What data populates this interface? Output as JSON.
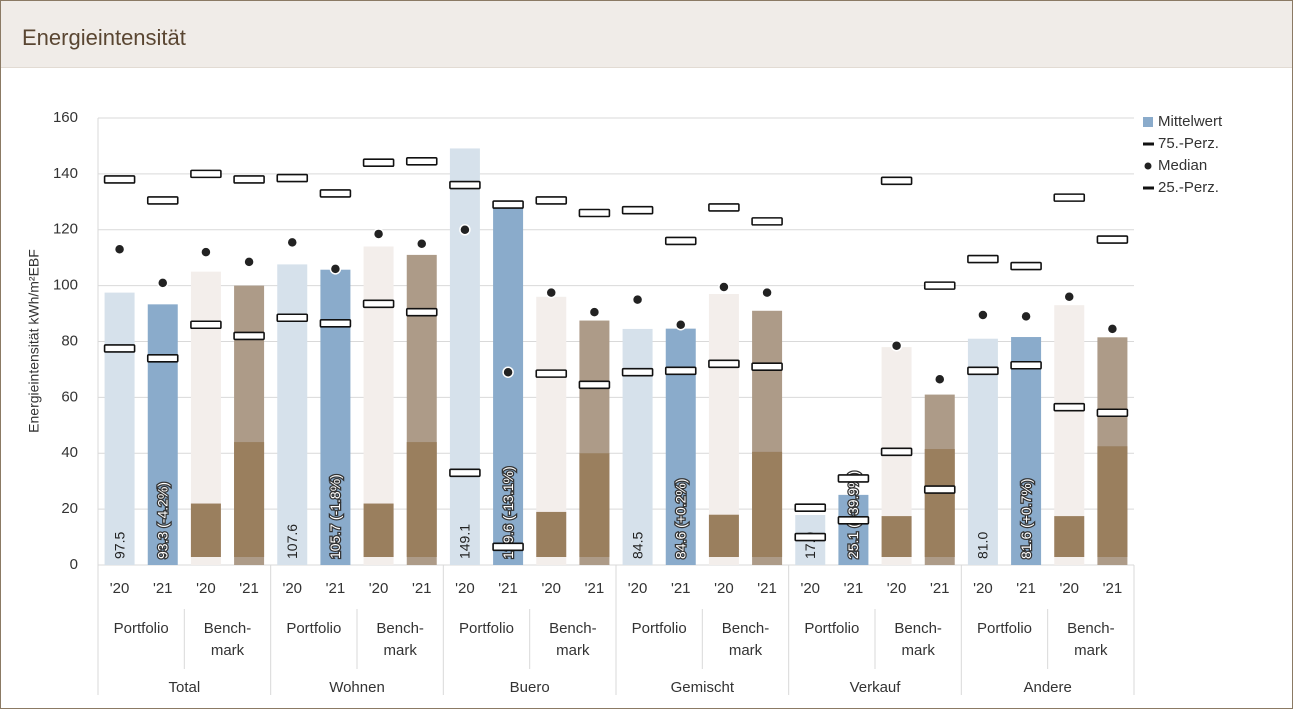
{
  "header": {
    "title": "Energieintensität"
  },
  "chart_data": {
    "type": "bar",
    "ylabel": "Energieintensität kWh/m²EBF",
    "ylim": [
      0,
      160
    ],
    "yticks": [
      0,
      20,
      40,
      60,
      80,
      100,
      120,
      140,
      160
    ],
    "grid": true,
    "categories": [
      "'20",
      "'21",
      "'20",
      "'21",
      "'20",
      "'21",
      "'20",
      "'21",
      "'20",
      "'21",
      "'20",
      "'21",
      "'20",
      "'21",
      "'20",
      "'21",
      "'20",
      "'21",
      "'20",
      "'21",
      "'20",
      "'21",
      "'20",
      "'21"
    ],
    "subgroups": [
      "Portfolio",
      "Bench-\nmark",
      "Portfolio",
      "Bench-\nmark",
      "Portfolio",
      "Bench-\nmark",
      "Portfolio",
      "Bench-\nmark",
      "Portfolio",
      "Bench-\nmark",
      "Portfolio",
      "Bench-\nmark"
    ],
    "groups": [
      "Total",
      "Wohnen",
      "Buero",
      "Gemischt",
      "Verkauf",
      "Andere"
    ],
    "series": [
      {
        "name": "Mittelwert",
        "marker": "bar",
        "color": "#8aabcb",
        "colors": [
          "#d6e1eb",
          "#8aabcb",
          "#f3eeeb",
          "#ad9b88",
          "#d6e1eb",
          "#8aabcb",
          "#f3eeeb",
          "#ad9b88",
          "#d6e1eb",
          "#8aabcb",
          "#f3eeeb",
          "#ad9b88",
          "#d6e1eb",
          "#8aabcb",
          "#f3eeeb",
          "#ad9b88",
          "#d6e1eb",
          "#8aabcb",
          "#f3eeeb",
          "#ad9b88",
          "#d6e1eb",
          "#8aabcb",
          "#f3eeeb",
          "#ad9b88"
        ],
        "values": [
          97.5,
          93.3,
          105,
          100,
          107.6,
          105.7,
          114,
          111,
          149.1,
          129.6,
          96,
          87.5,
          84.5,
          84.6,
          97,
          91,
          17.9,
          25.1,
          78,
          61,
          81.0,
          81.6,
          93,
          81.5
        ],
        "value_labels": [
          "97.5",
          "93.3 (-4.2%)",
          null,
          null,
          "107.6",
          "105.7 (-1.8%)",
          null,
          null,
          "149.1",
          "129.6 (-13.1%)",
          null,
          null,
          "84.5",
          "84.6 (+0.2%)",
          null,
          null,
          "17.9",
          "25.1 (+39.9%)",
          null,
          null,
          "81.0",
          "81.6 (+0.7%)",
          null,
          null
        ]
      },
      {
        "name": "75.-Perz.",
        "marker": "dash",
        "values": [
          138,
          130.5,
          140,
          138,
          138.5,
          133,
          144,
          144.5,
          136,
          129,
          130.5,
          126,
          127,
          116,
          128,
          123,
          20.5,
          31,
          137.5,
          100,
          109.5,
          107,
          131.5,
          116.5
        ]
      },
      {
        "name": "Median",
        "marker": "dot",
        "values": [
          113,
          101,
          112,
          108.5,
          115.5,
          106,
          118.5,
          115,
          120,
          69,
          97.5,
          90.5,
          95,
          86,
          99.5,
          97.5,
          null,
          null,
          78.5,
          66.5,
          89.5,
          89,
          96,
          84.5
        ]
      },
      {
        "name": "25.-Perz.",
        "marker": "dash",
        "values": [
          77.5,
          74,
          86,
          82,
          88.5,
          86.5,
          93.5,
          90.5,
          33,
          6.5,
          68.5,
          64.5,
          69,
          69.5,
          72,
          71,
          10,
          16,
          40.5,
          27,
          69.5,
          71.5,
          56.5,
          54.5
        ]
      }
    ],
    "inner": {
      "color": "#9a7f5e",
      "values": [
        null,
        null,
        22,
        44,
        null,
        null,
        22,
        44,
        null,
        null,
        19,
        40,
        null,
        null,
        18,
        40.5,
        null,
        null,
        17.5,
        41.5,
        null,
        null,
        17.5,
        42.5
      ]
    }
  }
}
